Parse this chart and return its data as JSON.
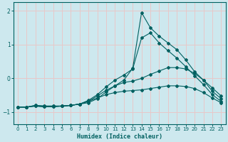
{
  "xlabel": "Humidex (Indice chaleur)",
  "background_color": "#cde8ee",
  "grid_color": "#e8c8c8",
  "line_color": "#006060",
  "xlim": [
    -0.5,
    23.5
  ],
  "ylim": [
    -1.35,
    2.25
  ],
  "xticks": [
    0,
    1,
    2,
    3,
    4,
    5,
    6,
    7,
    8,
    9,
    10,
    11,
    12,
    13,
    14,
    15,
    16,
    17,
    18,
    19,
    20,
    21,
    22,
    23
  ],
  "yticks": [
    -1,
    0,
    1,
    2
  ],
  "line1_x": [
    0,
    1,
    2,
    3,
    4,
    5,
    6,
    7,
    8,
    9,
    10,
    11,
    12,
    13,
    14,
    15,
    16,
    17,
    18,
    19,
    20,
    21,
    22,
    23
  ],
  "line1_y": [
    -0.85,
    -0.85,
    -0.8,
    -0.82,
    -0.82,
    -0.82,
    -0.8,
    -0.76,
    -0.72,
    -0.6,
    -0.4,
    -0.22,
    -0.05,
    0.3,
    1.95,
    1.5,
    1.25,
    1.05,
    0.85,
    0.55,
    0.2,
    -0.05,
    -0.38,
    -0.6
  ],
  "line2_x": [
    0,
    1,
    2,
    3,
    4,
    5,
    6,
    7,
    8,
    9,
    10,
    11,
    12,
    13,
    14,
    15,
    16,
    17,
    18,
    19,
    20,
    21,
    22,
    23
  ],
  "line2_y": [
    -0.85,
    -0.85,
    -0.8,
    -0.82,
    -0.82,
    -0.82,
    -0.8,
    -0.76,
    -0.65,
    -0.48,
    -0.25,
    -0.05,
    0.1,
    0.28,
    1.2,
    1.35,
    1.05,
    0.82,
    0.6,
    0.35,
    0.08,
    -0.18,
    -0.48,
    -0.68
  ],
  "line3_x": [
    0,
    1,
    2,
    3,
    4,
    5,
    6,
    7,
    8,
    9,
    10,
    11,
    12,
    13,
    14,
    15,
    16,
    17,
    18,
    19,
    20,
    21,
    22,
    23
  ],
  "line3_y": [
    -0.85,
    -0.85,
    -0.82,
    -0.84,
    -0.84,
    -0.82,
    -0.8,
    -0.76,
    -0.68,
    -0.52,
    -0.35,
    -0.22,
    -0.12,
    -0.08,
    0.0,
    0.12,
    0.22,
    0.32,
    0.32,
    0.28,
    0.15,
    -0.05,
    -0.28,
    -0.52
  ],
  "line4_x": [
    0,
    1,
    2,
    3,
    4,
    5,
    6,
    7,
    8,
    9,
    10,
    11,
    12,
    13,
    14,
    15,
    16,
    17,
    18,
    19,
    20,
    21,
    22,
    23
  ],
  "line4_y": [
    -0.85,
    -0.85,
    -0.82,
    -0.84,
    -0.84,
    -0.82,
    -0.8,
    -0.76,
    -0.68,
    -0.58,
    -0.48,
    -0.42,
    -0.38,
    -0.36,
    -0.34,
    -0.3,
    -0.26,
    -0.22,
    -0.22,
    -0.24,
    -0.3,
    -0.42,
    -0.58,
    -0.72
  ]
}
